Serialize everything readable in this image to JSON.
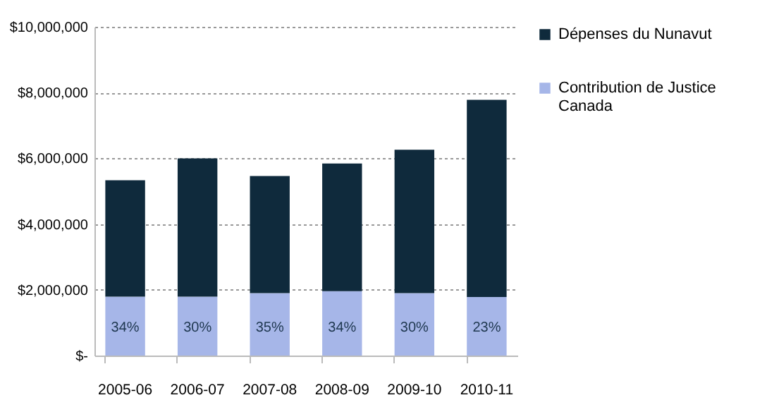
{
  "chart_data": {
    "type": "bar",
    "stacked": true,
    "categories": [
      "2005-06",
      "2006-07",
      "2007-08",
      "2008-09",
      "2009-10",
      "2010-11"
    ],
    "series": [
      {
        "name": "Contribution de Justice Canada",
        "color": "#a6b6e8",
        "values": [
          1790000,
          1790000,
          1900000,
          1960000,
          1900000,
          1780000
        ]
      },
      {
        "name": "Dépenses du Nunavut",
        "color": "#0f2a3c",
        "values": [
          3540000,
          4210000,
          3560000,
          3880000,
          4360000,
          6000000
        ]
      }
    ],
    "ylim": [
      0,
      10000000
    ],
    "yticks": [
      {
        "value": 0,
        "label": "$-"
      },
      {
        "value": 2000000,
        "label": "$2,000,000"
      },
      {
        "value": 4000000,
        "label": "$4,000,000"
      },
      {
        "value": 6000000,
        "label": "$6,000,000"
      },
      {
        "value": 8000000,
        "label": "$8,000,000"
      },
      {
        "value": 10000000,
        "label": "$10,000,000"
      }
    ],
    "annotations": [
      "34%",
      "30%",
      "35%",
      "34%",
      "30%",
      "23%"
    ],
    "grid": "y",
    "legend": "right"
  }
}
